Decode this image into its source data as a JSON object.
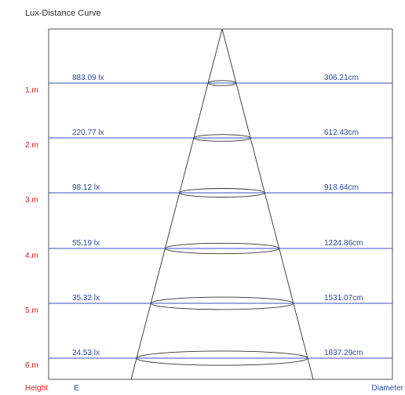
{
  "title": "Lux-Distance Curve",
  "footer": {
    "height_label": "Height",
    "e_label": "E",
    "diameter_label": "Diameter"
  },
  "colors": {
    "height_text": "#e02020",
    "value_text": "#2a4aa8",
    "rows": "#3b4fb8",
    "frame": "#555555",
    "cone": "#333333"
  },
  "chart_data": {
    "type": "table",
    "rows": [
      {
        "height": "1.m",
        "lux": "883.09 lx",
        "diameter": "306.21cm"
      },
      {
        "height": "2.m",
        "lux": "220.77 lx",
        "diameter": "612.43cm"
      },
      {
        "height": "3.m",
        "lux": "98.12 lx",
        "diameter": "918.64cm"
      },
      {
        "height": "4.m",
        "lux": "55.19 lx",
        "diameter": "1224.86cm"
      },
      {
        "height": "5.m",
        "lux": "35.32 lx",
        "diameter": "1531.07cm"
      },
      {
        "height": "6.m",
        "lux": "24.53 lx",
        "diameter": "1837.29cm"
      }
    ]
  }
}
